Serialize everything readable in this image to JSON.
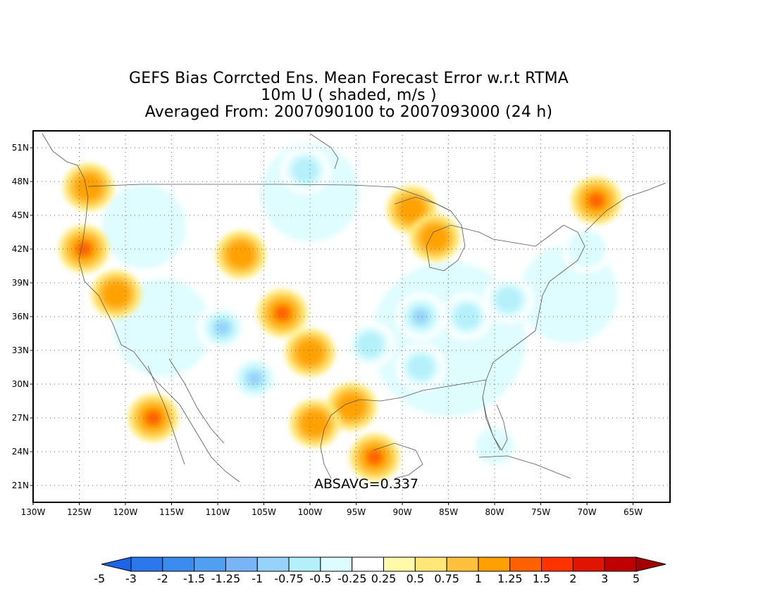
{
  "title": {
    "line1": "GEFS Bias Corrcted Ens. Mean Forecast Error w.r.t RTMA",
    "line2": "10m U ( shaded, m/s )",
    "line3": "Averaged From: 2007090100 to 2007093000 (24 h)"
  },
  "annotation": "ABSAVG=0.337",
  "map": {
    "lon_range": [
      -130,
      -61
    ],
    "lat_range": [
      19.5,
      52.5
    ],
    "lon_ticks": [
      -130,
      -125,
      -120,
      -115,
      -110,
      -105,
      -100,
      -95,
      -90,
      -85,
      -80,
      -75,
      -70,
      -65
    ],
    "lon_tick_labels": [
      "130W",
      "125W",
      "120W",
      "115W",
      "110W",
      "105W",
      "100W",
      "95W",
      "90W",
      "85W",
      "80W",
      "75W",
      "70W",
      "65W"
    ],
    "lat_ticks": [
      21,
      24,
      27,
      30,
      33,
      36,
      39,
      42,
      45,
      48,
      51
    ],
    "lat_tick_labels": [
      "21N",
      "24N",
      "27N",
      "30N",
      "33N",
      "36N",
      "39N",
      "42N",
      "45N",
      "48N",
      "51N"
    ],
    "grid": "dotted"
  },
  "colorbar": {
    "labels": [
      "-5",
      "-3",
      "-2",
      "-1.5",
      "-1.25",
      "-1",
      "-0.75",
      "-0.5",
      "-0.25",
      "0.25",
      "0.5",
      "0.75",
      "1",
      "1.25",
      "1.5",
      "2",
      "3",
      "5"
    ],
    "colors": [
      "#1e64e6",
      "#2b78ec",
      "#3c8cf0",
      "#509ff2",
      "#78b4f6",
      "#96d2fa",
      "#b4f0fa",
      "#dcfcff",
      "#ffffff",
      "#fffaaa",
      "#ffe878",
      "#ffc03c",
      "#ffa000",
      "#ff6000",
      "#ff3200",
      "#e11400",
      "#c00000",
      "#a50000"
    ]
  },
  "chart_data": {
    "type": "heatmap",
    "variable": "10m U",
    "units": "m/s",
    "absavg": 0.337,
    "features": [
      {
        "lon": -124.5,
        "lat": 42.0,
        "value": 1.0
      },
      {
        "lon": -124.0,
        "lat": 47.5,
        "value": 0.75
      },
      {
        "lon": -121.0,
        "lat": 38.0,
        "value": 0.75
      },
      {
        "lon": -117.0,
        "lat": 27.0,
        "value": 1.0
      },
      {
        "lon": -107.5,
        "lat": 41.5,
        "value": 0.75
      },
      {
        "lon": -103.0,
        "lat": 36.3,
        "value": 1.0
      },
      {
        "lon": -100.0,
        "lat": 32.8,
        "value": 0.75
      },
      {
        "lon": -95.5,
        "lat": 28.0,
        "value": 0.75
      },
      {
        "lon": -93.0,
        "lat": 23.5,
        "value": 1.0
      },
      {
        "lon": -99.5,
        "lat": 26.5,
        "value": 0.75
      },
      {
        "lon": -89.0,
        "lat": 45.5,
        "value": 0.75
      },
      {
        "lon": -86.5,
        "lat": 43.0,
        "value": 0.75
      },
      {
        "lon": -69.0,
        "lat": 46.3,
        "value": 1.0
      },
      {
        "lon": -100.5,
        "lat": 49.0,
        "value": -0.75
      },
      {
        "lon": -109.5,
        "lat": 35.0,
        "value": -1.0
      },
      {
        "lon": -106.0,
        "lat": 30.5,
        "value": -1.0
      },
      {
        "lon": -93.5,
        "lat": 33.5,
        "value": -0.75
      },
      {
        "lon": -88.0,
        "lat": 36.0,
        "value": -1.0
      },
      {
        "lon": -83.0,
        "lat": 36.0,
        "value": -0.75
      },
      {
        "lon": -78.5,
        "lat": 37.5,
        "value": -0.75
      },
      {
        "lon": -88.0,
        "lat": 31.5,
        "value": -0.75
      },
      {
        "lon": -80.0,
        "lat": 24.5,
        "value": -0.5
      },
      {
        "lon": -70.0,
        "lat": 42.0,
        "value": -0.5
      }
    ]
  }
}
